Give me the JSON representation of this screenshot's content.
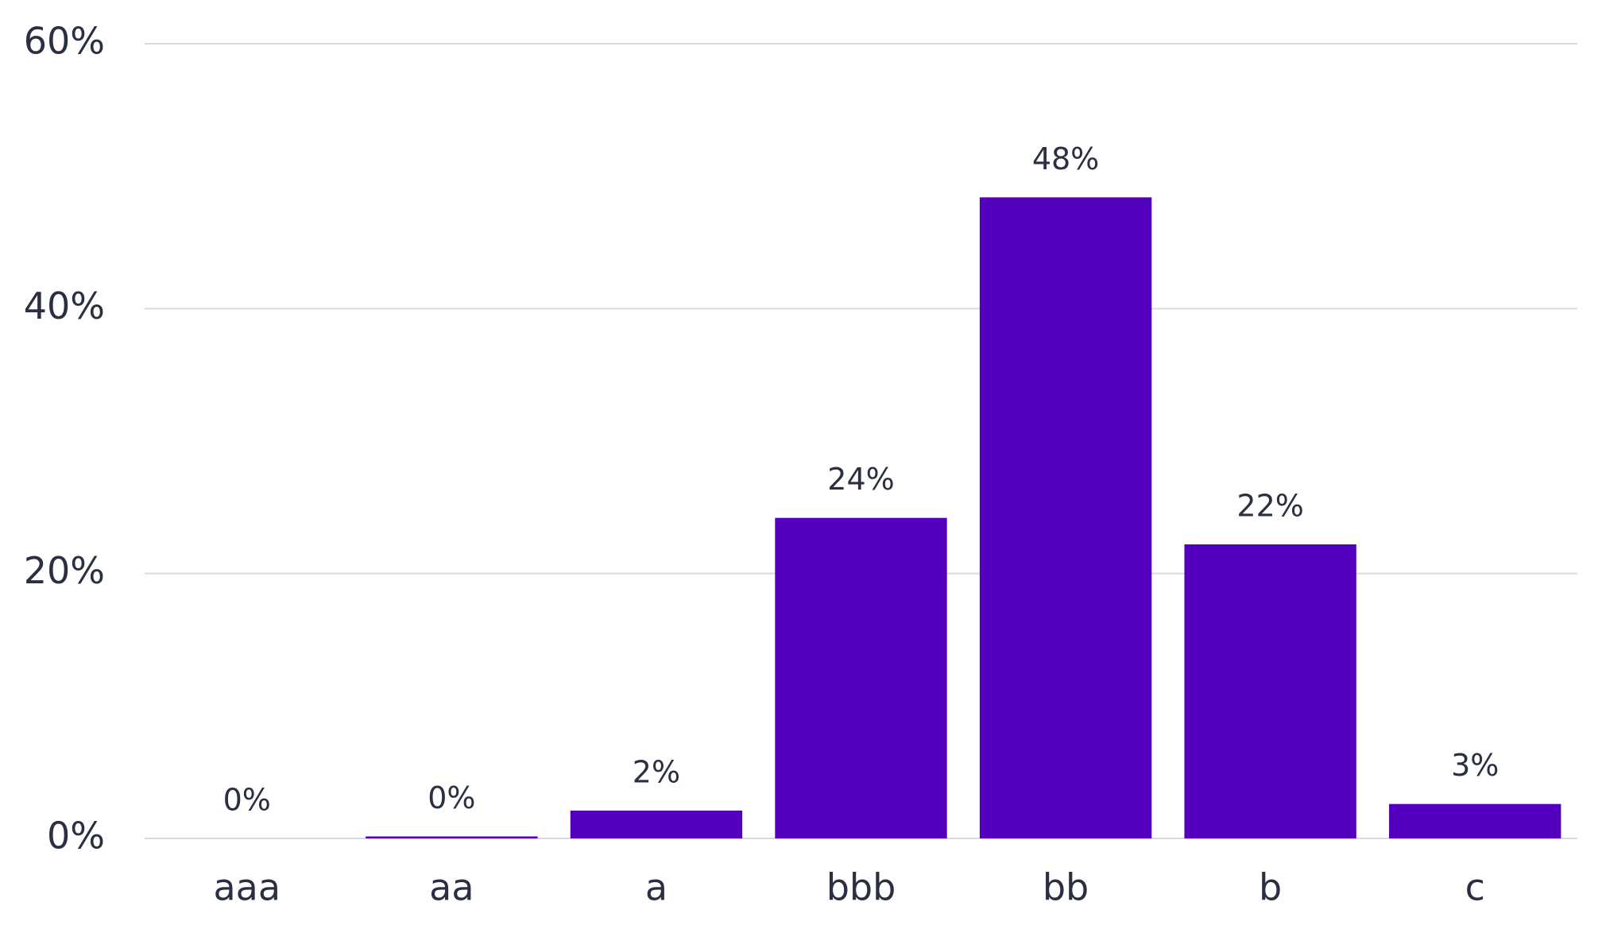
{
  "chart_data": {
    "type": "bar",
    "categories": [
      "aaa",
      "aa",
      "a",
      "bbb",
      "bb",
      "b",
      "c"
    ],
    "values": [
      0,
      0.15,
      2.1,
      24.2,
      48.4,
      22.2,
      2.6
    ],
    "value_labels": [
      "0%",
      "0%",
      "2%",
      "24%",
      "48%",
      "22%",
      "3%"
    ],
    "color": "#5200be",
    "ylim": [
      0,
      60
    ],
    "yticks": [
      {
        "value": 0,
        "label": "0%"
      },
      {
        "value": 20,
        "label": "20%"
      },
      {
        "value": 40,
        "label": "40%"
      },
      {
        "value": 60,
        "label": "60%"
      }
    ],
    "grid": true
  }
}
